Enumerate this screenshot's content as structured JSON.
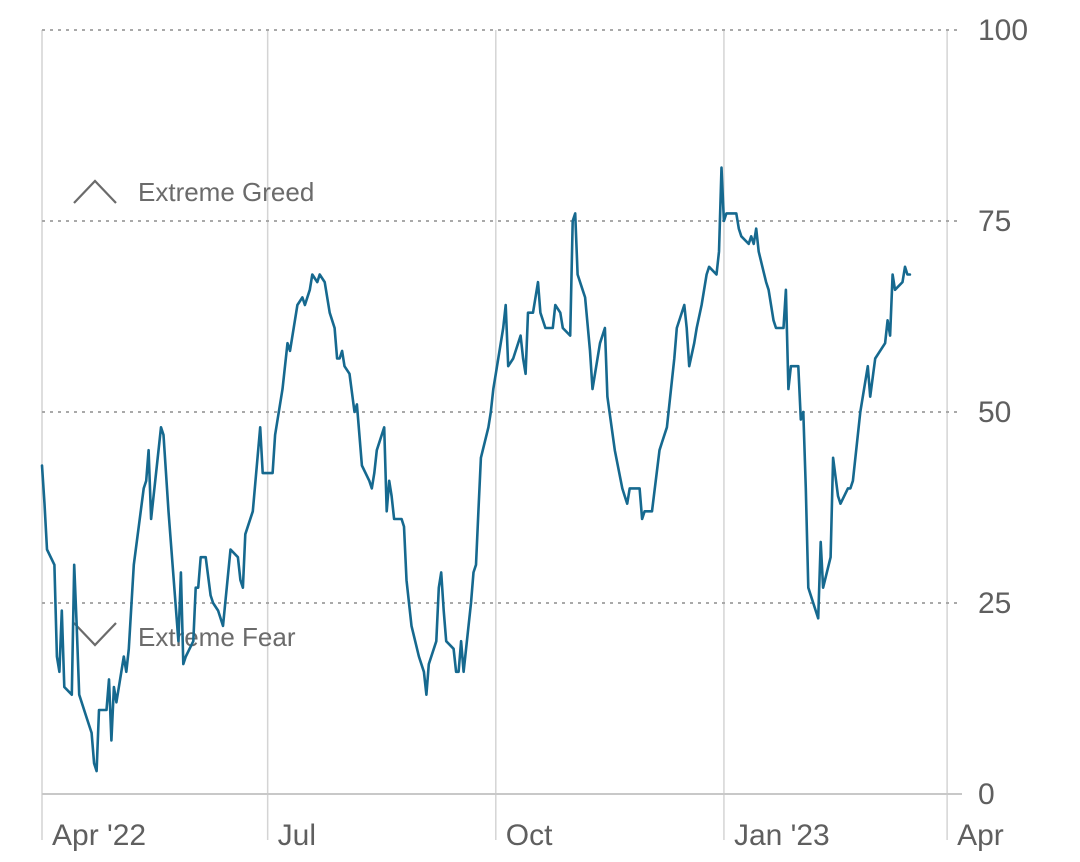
{
  "chart_data": {
    "type": "line",
    "title": "",
    "xlabel": "",
    "ylabel": "",
    "ylim": [
      0,
      100
    ],
    "yticks": [
      0,
      25,
      50,
      75,
      100
    ],
    "xticks": [
      {
        "label": "Apr '22",
        "date": "2022-04-01"
      },
      {
        "label": "Jul",
        "date": "2022-07-01"
      },
      {
        "label": "Oct",
        "date": "2022-10-01"
      },
      {
        "label": "Jan '23",
        "date": "2023-01-01"
      },
      {
        "label": "Apr",
        "date": "2023-04-01"
      }
    ],
    "xlim": [
      "2022-04-01",
      "2023-04-07"
    ],
    "grid": true,
    "zones": [
      {
        "label": "Extreme Greed",
        "icon": "chevron-up-icon"
      },
      {
        "label": "Extreme Fear",
        "icon": "chevron-down-icon"
      }
    ],
    "line_color": "#16698f",
    "series": [
      {
        "name": "",
        "points": [
          [
            "2022-04-01",
            43
          ],
          [
            "2022-04-02",
            38
          ],
          [
            "2022-04-03",
            32
          ],
          [
            "2022-04-06",
            30
          ],
          [
            "2022-04-07",
            18
          ],
          [
            "2022-04-08",
            16
          ],
          [
            "2022-04-09",
            24
          ],
          [
            "2022-04-10",
            14
          ],
          [
            "2022-04-13",
            13
          ],
          [
            "2022-04-14",
            30
          ],
          [
            "2022-04-15",
            22
          ],
          [
            "2022-04-16",
            13
          ],
          [
            "2022-04-19",
            10
          ],
          [
            "2022-04-21",
            8
          ],
          [
            "2022-04-22",
            4
          ],
          [
            "2022-04-23",
            3
          ],
          [
            "2022-04-24",
            11
          ],
          [
            "2022-04-27",
            11
          ],
          [
            "2022-04-28",
            15
          ],
          [
            "2022-04-29",
            7
          ],
          [
            "2022-04-30",
            14
          ],
          [
            "2022-05-01",
            12
          ],
          [
            "2022-05-04",
            18
          ],
          [
            "2022-05-05",
            16
          ],
          [
            "2022-05-06",
            19
          ],
          [
            "2022-05-08",
            30
          ],
          [
            "2022-05-12",
            40
          ],
          [
            "2022-05-13",
            41
          ],
          [
            "2022-05-14",
            45
          ],
          [
            "2022-05-15",
            36
          ],
          [
            "2022-05-19",
            48
          ],
          [
            "2022-05-20",
            47
          ],
          [
            "2022-05-22",
            37
          ],
          [
            "2022-05-26",
            20
          ],
          [
            "2022-05-27",
            29
          ],
          [
            "2022-05-28",
            17
          ],
          [
            "2022-05-29",
            18
          ],
          [
            "2022-06-01",
            20
          ],
          [
            "2022-06-02",
            27
          ],
          [
            "2022-06-03",
            27
          ],
          [
            "2022-06-04",
            31
          ],
          [
            "2022-06-06",
            31
          ],
          [
            "2022-06-08",
            26
          ],
          [
            "2022-06-09",
            25
          ],
          [
            "2022-06-11",
            24
          ],
          [
            "2022-06-13",
            22
          ],
          [
            "2022-06-16",
            32
          ],
          [
            "2022-06-19",
            31
          ],
          [
            "2022-06-20",
            28
          ],
          [
            "2022-06-21",
            27
          ],
          [
            "2022-06-22",
            34
          ],
          [
            "2022-06-25",
            37
          ],
          [
            "2022-06-28",
            48
          ],
          [
            "2022-06-29",
            42
          ],
          [
            "2022-07-03",
            42
          ],
          [
            "2022-07-04",
            47
          ],
          [
            "2022-07-07",
            53
          ],
          [
            "2022-07-09",
            59
          ],
          [
            "2022-07-10",
            58
          ],
          [
            "2022-07-13",
            64
          ],
          [
            "2022-07-15",
            65
          ],
          [
            "2022-07-16",
            64
          ],
          [
            "2022-07-18",
            66
          ],
          [
            "2022-07-19",
            68
          ],
          [
            "2022-07-21",
            67
          ],
          [
            "2022-07-22",
            68
          ],
          [
            "2022-07-24",
            67
          ],
          [
            "2022-07-26",
            63
          ],
          [
            "2022-07-28",
            61
          ],
          [
            "2022-07-29",
            57
          ],
          [
            "2022-07-30",
            57
          ],
          [
            "2022-07-31",
            58
          ],
          [
            "2022-08-01",
            56
          ],
          [
            "2022-08-03",
            55
          ],
          [
            "2022-08-05",
            50
          ],
          [
            "2022-08-06",
            51
          ],
          [
            "2022-08-08",
            43
          ],
          [
            "2022-08-11",
            41
          ],
          [
            "2022-08-12",
            40
          ],
          [
            "2022-08-13",
            42
          ],
          [
            "2022-08-14",
            45
          ],
          [
            "2022-08-17",
            48
          ],
          [
            "2022-08-18",
            37
          ],
          [
            "2022-08-19",
            41
          ],
          [
            "2022-08-20",
            39
          ],
          [
            "2022-08-21",
            36
          ],
          [
            "2022-08-23",
            36
          ],
          [
            "2022-08-24",
            36
          ],
          [
            "2022-08-25",
            35
          ],
          [
            "2022-08-26",
            28
          ],
          [
            "2022-08-28",
            22
          ],
          [
            "2022-08-31",
            18
          ],
          [
            "2022-09-02",
            16
          ],
          [
            "2022-09-03",
            13
          ],
          [
            "2022-09-04",
            17
          ],
          [
            "2022-09-07",
            20
          ],
          [
            "2022-09-08",
            27
          ],
          [
            "2022-09-09",
            29
          ],
          [
            "2022-09-10",
            24
          ],
          [
            "2022-09-11",
            20
          ],
          [
            "2022-09-14",
            19
          ],
          [
            "2022-09-15",
            16
          ],
          [
            "2022-09-16",
            16
          ],
          [
            "2022-09-17",
            20
          ],
          [
            "2022-09-18",
            16
          ],
          [
            "2022-09-21",
            25
          ],
          [
            "2022-09-22",
            29
          ],
          [
            "2022-09-23",
            30
          ],
          [
            "2022-09-24",
            37
          ],
          [
            "2022-09-25",
            44
          ],
          [
            "2022-09-28",
            48
          ],
          [
            "2022-09-29",
            50
          ],
          [
            "2022-09-30",
            53
          ],
          [
            "2022-10-01",
            55
          ],
          [
            "2022-10-04",
            61
          ],
          [
            "2022-10-05",
            64
          ],
          [
            "2022-10-06",
            56
          ],
          [
            "2022-10-08",
            57
          ],
          [
            "2022-10-11",
            60
          ],
          [
            "2022-10-12",
            57
          ],
          [
            "2022-10-13",
            55
          ],
          [
            "2022-10-14",
            63
          ],
          [
            "2022-10-16",
            63
          ],
          [
            "2022-10-18",
            67
          ],
          [
            "2022-10-19",
            63
          ],
          [
            "2022-10-21",
            61
          ],
          [
            "2022-10-24",
            61
          ],
          [
            "2022-10-25",
            64
          ],
          [
            "2022-10-27",
            63
          ],
          [
            "2022-10-28",
            61
          ],
          [
            "2022-10-31",
            60
          ],
          [
            "2022-11-01",
            75
          ],
          [
            "2022-11-02",
            76
          ],
          [
            "2022-11-03",
            68
          ],
          [
            "2022-11-05",
            66
          ],
          [
            "2022-11-06",
            65
          ],
          [
            "2022-11-08",
            58
          ],
          [
            "2022-11-09",
            53
          ],
          [
            "2022-11-12",
            59
          ],
          [
            "2022-11-14",
            61
          ],
          [
            "2022-11-15",
            52
          ],
          [
            "2022-11-18",
            45
          ],
          [
            "2022-11-21",
            40
          ],
          [
            "2022-11-22",
            39
          ],
          [
            "2022-11-23",
            38
          ],
          [
            "2022-11-24",
            40
          ],
          [
            "2022-11-28",
            40
          ],
          [
            "2022-11-29",
            36
          ],
          [
            "2022-11-30",
            37
          ],
          [
            "2022-12-03",
            37
          ],
          [
            "2022-12-06",
            45
          ],
          [
            "2022-12-07",
            46
          ],
          [
            "2022-12-09",
            48
          ],
          [
            "2022-12-12",
            57
          ],
          [
            "2022-12-13",
            61
          ],
          [
            "2022-12-16",
            64
          ],
          [
            "2022-12-17",
            61
          ],
          [
            "2022-12-18",
            56
          ],
          [
            "2022-12-20",
            59
          ],
          [
            "2022-12-21",
            61
          ],
          [
            "2022-12-23",
            64
          ],
          [
            "2022-12-25",
            68
          ],
          [
            "2022-12-26",
            69
          ],
          [
            "2022-12-29",
            68
          ],
          [
            "2022-12-30",
            71
          ],
          [
            "2022-12-31",
            82
          ],
          [
            "2023-01-01",
            75
          ],
          [
            "2023-01-02",
            76
          ],
          [
            "2023-01-05",
            76
          ],
          [
            "2023-01-06",
            76
          ],
          [
            "2023-01-07",
            74
          ],
          [
            "2023-01-08",
            73
          ],
          [
            "2023-01-11",
            72
          ],
          [
            "2023-01-12",
            73
          ],
          [
            "2023-01-13",
            72
          ],
          [
            "2023-01-14",
            74
          ],
          [
            "2023-01-15",
            71
          ],
          [
            "2023-01-18",
            67
          ],
          [
            "2023-01-19",
            66
          ],
          [
            "2023-01-21",
            62
          ],
          [
            "2023-01-22",
            61
          ],
          [
            "2023-01-25",
            61
          ],
          [
            "2023-01-26",
            66
          ],
          [
            "2023-01-27",
            53
          ],
          [
            "2023-01-28",
            56
          ],
          [
            "2023-01-31",
            56
          ],
          [
            "2023-02-01",
            49
          ],
          [
            "2023-02-02",
            50
          ],
          [
            "2023-02-03",
            40
          ],
          [
            "2023-02-04",
            27
          ],
          [
            "2023-02-07",
            24
          ],
          [
            "2023-02-08",
            23
          ],
          [
            "2023-02-09",
            33
          ],
          [
            "2023-02-10",
            27
          ],
          [
            "2023-02-13",
            31
          ],
          [
            "2023-02-14",
            44
          ],
          [
            "2023-02-16",
            39
          ],
          [
            "2023-02-17",
            38
          ],
          [
            "2023-02-20",
            40
          ],
          [
            "2023-02-21",
            40
          ],
          [
            "2023-02-22",
            41
          ],
          [
            "2023-02-25",
            50
          ],
          [
            "2023-02-27",
            54
          ],
          [
            "2023-02-28",
            56
          ],
          [
            "2023-03-01",
            52
          ],
          [
            "2023-03-03",
            57
          ],
          [
            "2023-03-07",
            59
          ],
          [
            "2023-03-08",
            62
          ],
          [
            "2023-03-09",
            60
          ],
          [
            "2023-03-10",
            68
          ],
          [
            "2023-03-11",
            66
          ],
          [
            "2023-03-14",
            67
          ],
          [
            "2023-03-15",
            69
          ],
          [
            "2023-03-16",
            68
          ],
          [
            "2023-03-17",
            68
          ]
        ]
      }
    ]
  }
}
